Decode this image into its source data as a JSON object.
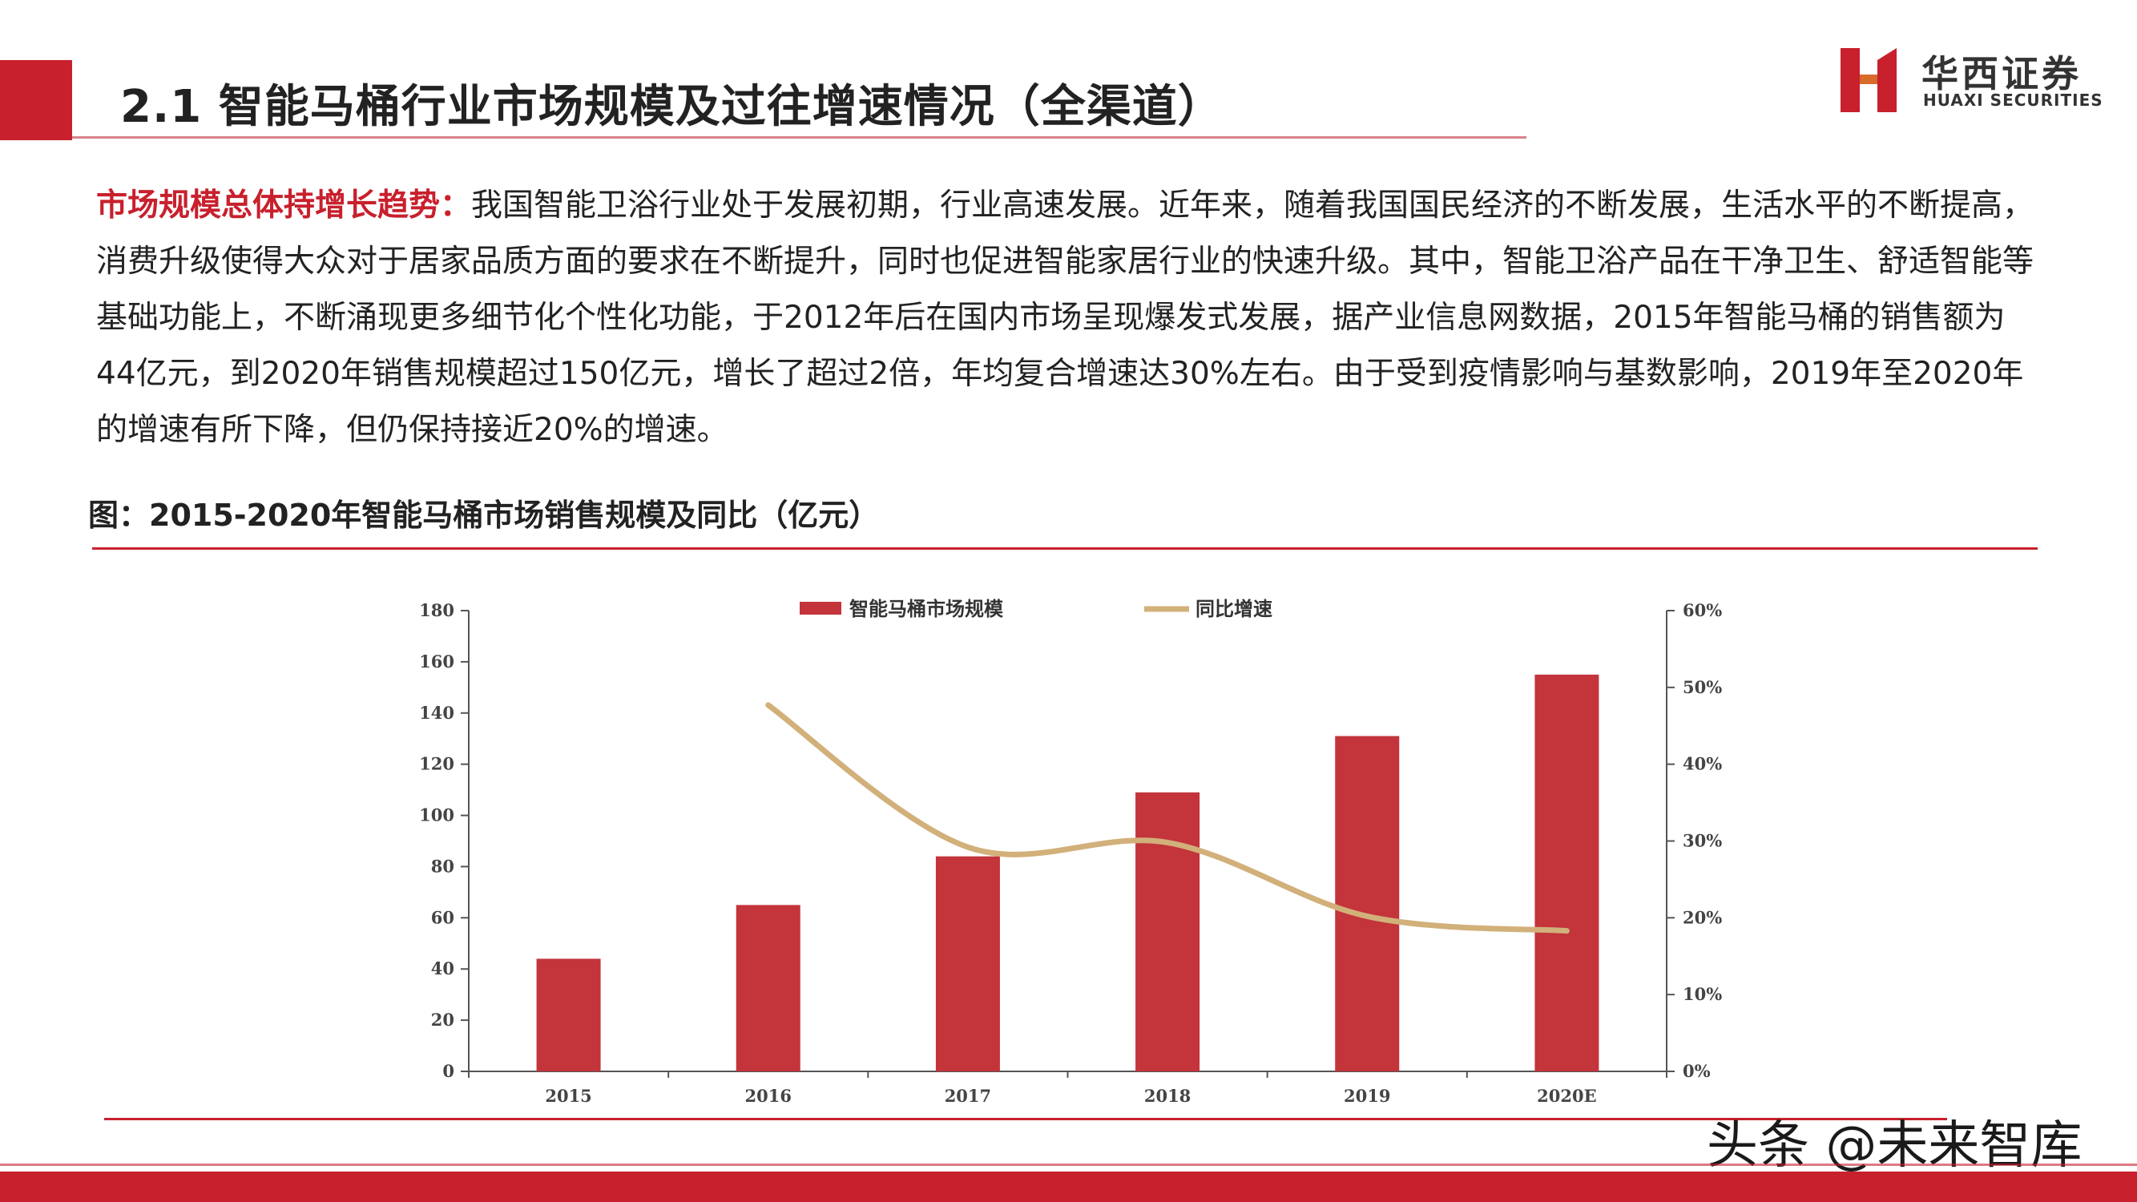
{
  "header": {
    "title": "2.1 智能马桶行业市场规模及过往增速情况（全渠道）"
  },
  "logo": {
    "cn": "华西证券",
    "en": "HUAXI SECURITIES"
  },
  "paragraph": {
    "lead": "市场规模总体持增长趋势：",
    "body": "我国智能卫浴行业处于发展初期，行业高速发展。近年来，随着我国国民经济的不断发展，生活水平的不断提高，消费升级使得大众对于居家品质方面的要求在不断提升，同时也促进智能家居行业的快速升级。其中，智能卫浴产品在干净卫生、舒适智能等基础功能上，不断涌现更多细节化个性化功能，于2012年后在国内市场呈现爆发式发展，据产业信息网数据，2015年智能马桶的销售额为44亿元，到2020年销售规模超过150亿元，增长了超过2倍，年均复合增速达30%左右。由于受到疫情影响与基数影响，2019年至2020年的增速有所下降，但仍保持接近20%的增速。"
  },
  "chart_title": "图：2015-2020年智能马桶市场销售规模及同比（亿元）",
  "watermark": "头条 @未来智库",
  "colors": {
    "accent": "#c8202d",
    "bar": "#c3343b",
    "line": "#d2b07a"
  },
  "chart_data": {
    "type": "bar",
    "categories": [
      "2015",
      "2016",
      "2017",
      "2018",
      "2019",
      "2020E"
    ],
    "series": [
      {
        "name": "智能马桶市场规模",
        "type": "bar",
        "axis": "left",
        "values": [
          44,
          65,
          84,
          109,
          131,
          155
        ]
      },
      {
        "name": "同比增速",
        "type": "line",
        "axis": "right",
        "values": [
          null,
          0.477,
          0.292,
          0.298,
          0.202,
          0.183
        ]
      }
    ],
    "y_left": {
      "min": 0,
      "max": 180,
      "ticks": [
        "0",
        "20",
        "40",
        "60",
        "80",
        "100",
        "120",
        "140",
        "160",
        "180"
      ]
    },
    "y_right": {
      "min": 0,
      "max": 0.6,
      "ticks": [
        "0%",
        "10%",
        "20%",
        "30%",
        "40%",
        "50%",
        "60%"
      ]
    },
    "legend_position": "top-center",
    "grid": false
  }
}
